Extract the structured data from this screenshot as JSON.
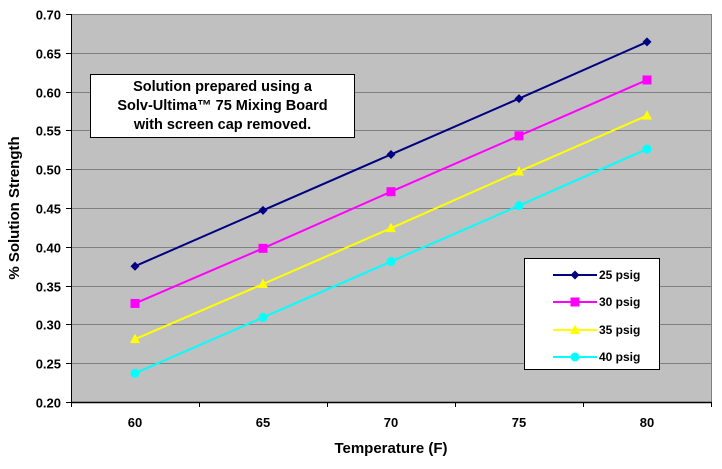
{
  "chart_data": {
    "type": "line",
    "title": "",
    "xlabel": "Temperature (F)",
    "ylabel": "% Solution Strength",
    "categories": [
      "60",
      "65",
      "70",
      "75",
      "80"
    ],
    "ylim": [
      0.2,
      0.7
    ],
    "yticks": [
      "0.20",
      "0.25",
      "0.30",
      "0.35",
      "0.40",
      "0.45",
      "0.50",
      "0.55",
      "0.60",
      "0.65",
      "0.70"
    ],
    "ytick_values": [
      0.2,
      0.25,
      0.3,
      0.35,
      0.4,
      0.45,
      0.5,
      0.55,
      0.6,
      0.65,
      0.7
    ],
    "grid": true,
    "legend_position": "lower-right",
    "series": [
      {
        "name": "25 psig",
        "color": "#000080",
        "marker": "diamond",
        "values": [
          0.375,
          0.447,
          0.519,
          0.591,
          0.664
        ]
      },
      {
        "name": "30 psig",
        "color": "#FF00FF",
        "marker": "square",
        "values": [
          0.327,
          0.398,
          0.471,
          0.543,
          0.615
        ]
      },
      {
        "name": "35 psig",
        "color": "#FFFF00",
        "marker": "triangle",
        "values": [
          0.281,
          0.352,
          0.424,
          0.497,
          0.569
        ]
      },
      {
        "name": "40 psig",
        "color": "#00FFFF",
        "marker": "circle",
        "values": [
          0.237,
          0.309,
          0.381,
          0.453,
          0.526
        ]
      }
    ],
    "annotation": {
      "lines": [
        "Solution prepared using a",
        "Solv-Ultima™ 75 Mixing Board",
        "with screen cap removed."
      ]
    }
  },
  "colors": {
    "plot_background": "#C0C0C0",
    "gridline": "#808080"
  }
}
